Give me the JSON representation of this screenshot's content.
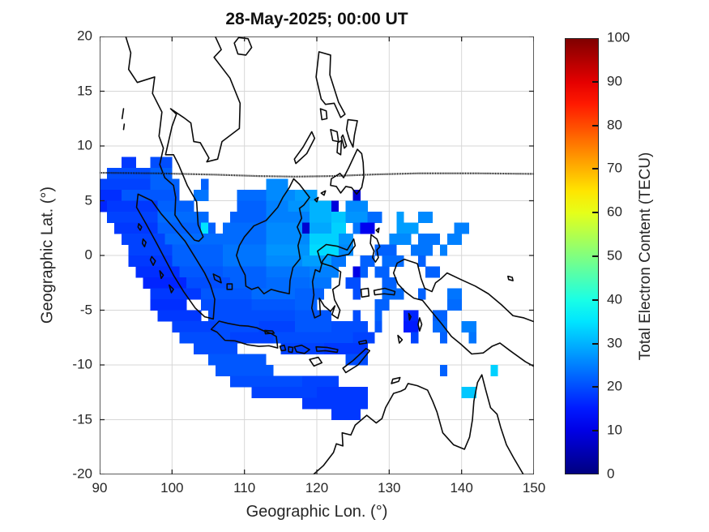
{
  "chart_data": {
    "type": "heatmap",
    "title": "28-May-2025; 00:00 UT",
    "xlabel": "Geographic Lon. (°)",
    "ylabel": "Geographic Lat. (°)",
    "xlim": [
      90,
      150
    ],
    "ylim": [
      -20,
      20
    ],
    "xticks": [
      90,
      100,
      110,
      120,
      130,
      140,
      150
    ],
    "yticks": [
      20,
      15,
      10,
      5,
      0,
      -5,
      -10,
      -15,
      -20
    ],
    "grid": true,
    "units": "TECU",
    "cell_size_deg": 1,
    "colorbar": {
      "label": "Total Electron Content (TECU)",
      "ticks": [
        0,
        10,
        20,
        30,
        40,
        50,
        60,
        70,
        80,
        90,
        100
      ],
      "clim": [
        0,
        100
      ],
      "colormap": "jet"
    },
    "tec_rows": [
      {
        "lat": 8,
        "spans": [
          [
            93,
            94,
            18
          ],
          [
            97,
            99,
            20
          ]
        ]
      },
      {
        "lat": 7,
        "spans": [
          [
            91,
            96,
            20
          ],
          [
            97,
            99,
            22
          ]
        ]
      },
      {
        "lat": 6,
        "spans": [
          [
            90,
            96,
            19
          ],
          [
            97,
            100,
            22
          ],
          [
            104,
            104,
            22
          ],
          [
            113,
            115,
            26
          ]
        ]
      },
      {
        "lat": 5,
        "spans": [
          [
            90,
            92,
            17
          ],
          [
            93,
            100,
            21
          ],
          [
            103,
            104,
            24
          ],
          [
            109,
            112,
            23
          ],
          [
            113,
            116,
            26
          ],
          [
            117,
            119,
            28
          ],
          [
            125,
            125,
            8
          ]
        ]
      },
      {
        "lat": 4,
        "spans": [
          [
            90,
            90,
            16
          ],
          [
            91,
            97,
            18
          ],
          [
            98,
            102,
            22
          ],
          [
            109,
            112,
            22
          ],
          [
            113,
            115,
            25
          ],
          [
            116,
            118,
            27
          ],
          [
            119,
            121,
            30
          ],
          [
            122,
            122,
            9
          ],
          [
            124,
            126,
            26
          ]
        ]
      },
      {
        "lat": 3,
        "spans": [
          [
            91,
            97,
            19
          ],
          [
            98,
            104,
            23
          ],
          [
            108,
            112,
            22
          ],
          [
            113,
            118,
            25
          ],
          [
            119,
            121,
            30
          ],
          [
            122,
            123,
            32
          ],
          [
            124,
            126,
            27
          ],
          [
            127,
            128,
            23
          ],
          [
            131,
            131,
            28
          ],
          [
            134,
            135,
            26
          ]
        ]
      },
      {
        "lat": 2,
        "spans": [
          [
            92,
            97,
            18
          ],
          [
            98,
            103,
            22
          ],
          [
            104,
            104,
            35
          ],
          [
            105,
            105,
            22
          ],
          [
            107,
            112,
            23
          ],
          [
            113,
            117,
            26
          ],
          [
            118,
            118,
            8
          ],
          [
            119,
            121,
            29
          ],
          [
            122,
            123,
            33
          ],
          [
            125,
            125,
            24
          ],
          [
            126,
            127,
            11
          ],
          [
            131,
            133,
            28
          ],
          [
            139,
            140,
            25
          ]
        ]
      },
      {
        "lat": 1,
        "spans": [
          [
            93,
            98,
            19
          ],
          [
            99,
            106,
            23
          ],
          [
            107,
            112,
            23
          ],
          [
            113,
            118,
            26
          ],
          [
            119,
            122,
            33
          ],
          [
            123,
            124,
            27
          ],
          [
            130,
            132,
            26
          ],
          [
            134,
            136,
            24
          ],
          [
            138,
            139,
            25
          ]
        ]
      },
      {
        "lat": 0,
        "spans": [
          [
            94,
            99,
            19
          ],
          [
            100,
            106,
            22
          ],
          [
            107,
            112,
            24
          ],
          [
            113,
            118,
            27
          ],
          [
            119,
            122,
            34
          ],
          [
            123,
            124,
            26
          ],
          [
            128,
            130,
            22
          ],
          [
            133,
            135,
            24
          ],
          [
            137,
            137,
            25
          ]
        ]
      },
      {
        "lat": -1,
        "spans": [
          [
            94,
            99,
            18
          ],
          [
            100,
            106,
            22
          ],
          [
            107,
            112,
            24
          ],
          [
            113,
            117,
            26
          ],
          [
            118,
            121,
            28
          ],
          [
            122,
            123,
            24
          ],
          [
            126,
            127,
            22
          ],
          [
            129,
            131,
            23
          ],
          [
            134,
            134,
            22
          ]
        ]
      },
      {
        "lat": -2,
        "spans": [
          [
            95,
            100,
            17
          ],
          [
            101,
            106,
            21
          ],
          [
            107,
            112,
            22
          ],
          [
            113,
            118,
            24
          ],
          [
            119,
            122,
            25
          ],
          [
            125,
            125,
            10
          ],
          [
            126,
            126,
            22
          ],
          [
            128,
            129,
            22
          ],
          [
            135,
            136,
            22
          ]
        ]
      },
      {
        "lat": -3,
        "spans": [
          [
            96,
            101,
            16
          ],
          [
            102,
            107,
            20
          ],
          [
            108,
            112,
            22
          ],
          [
            113,
            118,
            23
          ],
          [
            119,
            121,
            24
          ],
          [
            124,
            125,
            20
          ],
          [
            129,
            130,
            22
          ]
        ]
      },
      {
        "lat": -4,
        "spans": [
          [
            97,
            103,
            18
          ],
          [
            104,
            110,
            21
          ],
          [
            111,
            116,
            23
          ],
          [
            117,
            120,
            22
          ],
          [
            125,
            125,
            20
          ],
          [
            129,
            131,
            23
          ],
          [
            134,
            134,
            22
          ],
          [
            138,
            139,
            24
          ]
        ]
      },
      {
        "lat": -5,
        "spans": [
          [
            97,
            101,
            17
          ],
          [
            104,
            110,
            20
          ],
          [
            111,
            116,
            21
          ],
          [
            117,
            119,
            22
          ],
          [
            128,
            129,
            22
          ],
          [
            138,
            139,
            23
          ]
        ]
      },
      {
        "lat": -6,
        "spans": [
          [
            98,
            103,
            18
          ],
          [
            105,
            110,
            20
          ],
          [
            111,
            116,
            20
          ],
          [
            117,
            121,
            21
          ],
          [
            125,
            125,
            20
          ],
          [
            128,
            128,
            22
          ],
          [
            132,
            133,
            16
          ],
          [
            136,
            137,
            22
          ]
        ]
      },
      {
        "lat": -7,
        "spans": [
          [
            100,
            105,
            19
          ],
          [
            106,
            111,
            20
          ],
          [
            112,
            116,
            19
          ],
          [
            117,
            121,
            21
          ],
          [
            122,
            126,
            20
          ],
          [
            128,
            128,
            21
          ],
          [
            132,
            133,
            15
          ],
          [
            136,
            137,
            23
          ],
          [
            140,
            141,
            25
          ]
        ]
      },
      {
        "lat": -8,
        "spans": [
          [
            101,
            107,
            20
          ],
          [
            108,
            113,
            19
          ],
          [
            114,
            118,
            20
          ],
          [
            119,
            124,
            20
          ],
          [
            125,
            127,
            19
          ],
          [
            133,
            133,
            19
          ],
          [
            137,
            137,
            22
          ],
          [
            141,
            141,
            24
          ]
        ]
      },
      {
        "lat": -9,
        "spans": [
          [
            103,
            108,
            20
          ],
          [
            115,
            120,
            19
          ],
          [
            121,
            126,
            18
          ]
        ]
      },
      {
        "lat": -10,
        "spans": [
          [
            105,
            112,
            21
          ],
          [
            124,
            126,
            20
          ]
        ]
      },
      {
        "lat": -11,
        "spans": [
          [
            106,
            113,
            21
          ],
          [
            137,
            137,
            22
          ],
          [
            144,
            144,
            33
          ]
        ]
      },
      {
        "lat": -12,
        "spans": [
          [
            108,
            117,
            20
          ],
          [
            118,
            122,
            19
          ]
        ]
      },
      {
        "lat": -13,
        "spans": [
          [
            111,
            119,
            19
          ],
          [
            120,
            126,
            18
          ],
          [
            140,
            141,
            32
          ]
        ]
      },
      {
        "lat": -14,
        "spans": [
          [
            118,
            126,
            18
          ]
        ]
      },
      {
        "lat": -15,
        "spans": [
          [
            122,
            125,
            18
          ]
        ]
      }
    ],
    "magnetic_equator_dashed": [
      [
        90,
        7.55
      ],
      [
        98,
        7.5
      ],
      [
        106,
        7.38
      ],
      [
        112,
        7.25
      ],
      [
        117,
        7.2
      ],
      [
        122,
        7.25
      ],
      [
        128,
        7.4
      ],
      [
        134,
        7.5
      ],
      [
        142,
        7.5
      ],
      [
        150,
        7.45
      ]
    ],
    "basemap_coastline_paths": [
      "M 93.6 -20 L 94.3 -18.5 L 94 -17 L 95.2 -15.8 L 97.6 -16.3 L 97.3 -14.8 L 98.6 -13.1 L 98.2 -10.9 L 98.8 -9.8 L 98.3 -8.3 L 99 -7.1 L 100.2 -6.4 L 100.5 -5.3 L 100.4 -3.7 L 101.4 -2.7 L 103.1 -1.4 L 103.7 -1.3 L 104.3 -1.7 L 103.6 -2.8 L 103.4 -4.9 L 102.1 -6.4 L 100.9 -8.3 L 100.2 -9.2 L 99.1 -9.2 L 100 -11.8 L 100.6 -12.9 L 99.8 -13.4 L 101.6 -12.6 L 102.6 -12.1 L 103 -10.4 L 103.9 -10.3 L 105.1 -8.9 L 104.8 -8.55 L 106.3 -8.8 L 106.9 -10.4 L 109.3 -11.6 L 109.4 -13.9 L 108 -16.2 L 105.8 -18.1 L 106.8 -18.8 L 105.9 -20.1",
      "M 108.6 -19.4 L 109.2 -19.9 L 110.5 -19.8 L 111 -19 L 110.2 -18.3 L 109.1 -18.4 Z",
      "M 93.3 -13.4 L 93.1 -12.5",
      "M 93.4 -12 L 93.3 -11.5",
      "M 95.3 -5.6 L 97.2 -5 L 98.5 -3.8 L 100.1 -2.6 L 101.8 -1.3 L 103.3 0.3 L 104.5 1.6 L 105.3 2.7 L 105.9 4 L 105.7 5.8 L 104.5 5.6 L 103.2 4.8 L 101.6 3.3 L 100.2 1.8 L 99 0.3 L 97.8 -1.2 L 96.4 -2.9 L 95.1 -4.4 Z",
      "M 95.4 -2.9 L 95.8 -2.6 L 95.6 -2.3 L 95.3 -2.6 Z",
      "M 96 -1.5 L 96.4 -1.2 L 96.2 -0.8 L 95.9 -1.1 Z",
      "M 97.2 0.1 L 97.7 0.5 L 97.4 0.9 L 97 0.4 Z",
      "M 98.3 1.4 L 98.8 1.8 L 98.5 2.1 Z",
      "M 99.6 2.7 L 100.2 3.1 L 99.9 3.4 Z",
      "M 109.3 -0.9 L 110 -1.7 L 111.3 -2.7 L 113 -3.2 L 114.6 -4.4 L 115.3 -5.3 L 116.2 -6.2 L 116.8 -7 L 117.6 -6.5 L 119 -5.3 L 118.2 -4.6 L 117.6 -4.3 L 117.9 -3.4 L 117.3 -2.6 L 117.8 -1.8 L 117.4 -0.9 L 117.7 0.3 L 116.7 1.1 L 116.3 2.3 L 116.2 3.5 L 114.8 3.3 L 113.7 3.1 L 112.7 3.5 L 111.9 2.9 L 111 3.1 L 110.2 2.8 L 110.1 1.8 L 109.4 0.9 L 108.9 0 Z",
      "M 105.4 6.75 L 106.5 6 L 107.7 6.2 L 109.3 6.4 L 110.5 6.45 L 111.7 6.6 L 112.7 6.9 L 113.6 7.1 L 114.4 7.4 L 114.6 8.45 L 113.4 8.25 L 112 8.3 L 110.4 8.15 L 108.7 7.8 L 107.3 7.75 L 106.2 7 Z",
      "M 112.8 6.85 L 113.9 6.9 L 114.1 7.1 L 112.9 7.15 Z",
      "M 114.9 8.3 L 115.5 8.2 L 115.7 8.65 L 115.1 8.7 Z",
      "M 116.1 8.35 L 116.7 8.4 L 116.6 8.85 L 116.1 8.8 Z",
      "M 116.9 8.35 L 117.9 8.2 L 119 8.6 L 118.3 8.95 L 117.2 8.8 Z",
      "M 119.9 8.35 L 121.4 8.4 L 122.9 8.6 L 122.8 8.85 L 121.2 8.7 L 120 8.75 Z",
      "M 119 9.5 L 120.2 9.3 L 120.7 9.8 L 119.6 10.1 Z",
      "M 123.6 10.3 L 125 9.6 L 126.8 8.5 L 127.3 8.7 L 125.7 10 L 124 10.7 Z",
      "M 125.8 7.9 L 126.8 7.75 L 126.9 8 L 125.9 8.1 Z",
      "M 120.1 -0.4 L 121.3 -1 L 122.8 -0.85 L 124.2 -0.5 L 125.1 -1.5 L 125.3 -0.9 L 124.4 -0.1 L 122.9 0.1 L 121.5 -0.1 L 120.8 0.5 L 120.4 1.5 L 119.8 1.3 L 119.4 2.4 L 119.6 3.6 L 119.3 4.8 L 119.7 5.7 L 120.5 5.45 L 120.35 3.9 L 121 4.6 L 121.9 5.1 L 122.5 4.6 L 122.1 5.4 L 122.9 5.75 L 123.2 5 L 122.45 4.05 L 122.2 3.1 L 123.1 2.7 L 123.3 1.5 L 122.1 1 L 120.6 0.7 Z",
      "M 120.3 -18.6 L 121.9 -18.3 L 121.8 -16.5 L 123 -14 L 123.9 -12.9 L 123.3 -12.6 L 122.4 -13.9 L 121.2 -13.8 L 120.6 -14.3 L 119.9 -16.3 Z",
      "M 120.5 -13.4 L 121.3 -13.2 L 121.4 -12.5 L 120.7 -12.4 Z",
      "M 121.9 -11.5 L 122.8 -11.3 L 123 -10.4 L 122.2 -10.5 Z",
      "M 122.9 -10.3 L 123.4 -10.5 L 123.3 -9.2 L 122.8 -9.4 Z",
      "M 123.6 -11 L 124.1 -10 L 123.8 -9.8 L 123.4 -10.8 Z",
      "M 124.3 -12.4 L 125.6 -12.3 L 125.2 -11 L 125 -9.9 L 124.5 -10.6 L 124.1 -11.5 Z",
      "M 117.1 -8.4 L 118.6 -9.3 L 119.7 -10.7 L 119.3 -11.3 L 118.1 -9.9 L 116.9 -8.8 Z",
      "M 122 -7 L 123.2 -7.5 L 123.7 -7.1 L 124.4 -8 L 125.6 -9.7 L 126.2 -9.3 L 126.4 -8.5 L 126.5 -7.2 L 126.2 -6.2 L 125.5 -5.6 L 124.8 -6.2 L 124 -6.3 L 123.3 -5.7 L 122.7 -6.3 L 121.9 -6.4 Z",
      "M 120.6 -5.7 L 121.2 -5.9 L 121 -5.5 Z",
      "M 119.7 -5.1 L 120.2 -5.3 L 120 -4.9 Z",
      "M 127.5 -1.9 L 128.3 -1.5 L 128.7 -0.8 L 128.3 -0.5 L 128.5 0.2 L 128.1 0.6 L 127.7 0.2 L 127.9 -0.4 L 127.4 -1.1 Z",
      "M 128.2 -2.3 L 128.6 -2.5 L 128.5 -2.1 Z",
      "M 126.1 3.1 L 127.1 3 L 127.2 3.7 L 126.2 3.8 Z",
      "M 127.9 3.2 L 129.4 3 L 130.8 3.3 L 130.7 3.6 L 129.3 3.5 L 128 3.6 Z",
      "M 105.7 1.7 L 106.6 2 L 106.8 2.5 L 105.9 2.2 Z",
      "M 107.6 2.6 L 108.3 2.6 L 108.3 3.1 L 107.6 3.1 Z",
      "M 131.1 0.7 L 132.1 0.35 L 133.9 0.75 L 134.4 2.1 L 134.9 3 L 135.9 3.3 L 136.4 2.5 L 137.2 2.1 L 138 1.6 L 139.9 2.2 L 141.9 2.8 L 143.7 3.5 L 145.5 4.5 L 147.1 5.5 L 148.6 5.7 L 151 6.3 L 151 10.5 L 148.8 9.7 L 146.7 8.7 L 145.3 8 L 144.2 8.3 L 143 8.9 L 141.4 9 L 139.9 8.1 L 138.6 7.4 L 137.2 6.2 L 135.7 5 L 134.6 4.1 L 133.4 3.9 L 132.2 3.3 L 131.2 2.6 L 130.6 1.6 Z",
      "M 134.2 5.7 L 134.5 6.3 L 134.2 6.9 L 134 6.3 Z",
      "M 132.7 5.3 L 133 5.6 L 132.8 5.9 Z",
      "M 131.2 7.3 L 131.8 7.7 L 131.4 8 Z",
      "M 146.4 1.9 L 147 2 L 147.1 2.3 L 146.5 2.2 Z",
      "M 119.2 20.2 L 120.9 19.2 L 122.3 18 L 122.7 17.2 L 123.6 17.4 L 123.5 16.2 L 124.7 16.4 L 125.3 15.5 L 126.9 14.6 L 128.2 15.3 L 129 14.9 L 129.5 13.9 L 130.6 12.6 L 131.6 12.4 L 132.2 12.2 L 132.6 11.7 L 133.9 11.9 L 135.3 12.3 L 136 13.3 L 136.6 14.3 L 137.4 16.2 L 138.9 17.3 L 140.4 17.7 L 141.1 16.6 L 141.5 15 L 141.7 13.3 L 142.2 11.6 L 142.8 10.9 L 143.3 12.2 L 144 13.9 L 144.9 14.5 L 145.4 15.7 L 146.2 17.3 L 147.2 18.5 L 148 19.4 L 148.8 20.3",
      "M 130.3 11.7 L 131.3 11.5 L 131.5 11.15 L 130.5 11.3 Z"
    ]
  },
  "colors": {
    "grid": "#d7d7d7",
    "axis": "#262626",
    "coastline": "#0a0a0a",
    "background": "#ffffff"
  }
}
